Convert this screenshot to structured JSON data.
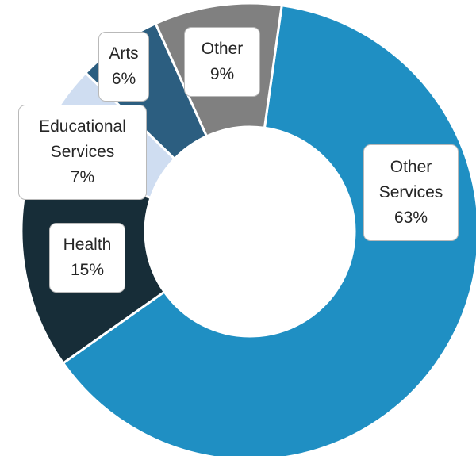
{
  "chart_data": {
    "type": "pie",
    "style": "donut",
    "title": "",
    "start_angle_deg": 0,
    "direction": "clockwise",
    "slices": [
      {
        "label": "Other Services",
        "label_lines": [
          "Other",
          "Services"
        ],
        "value": 63,
        "value_label": "63%",
        "color": "#1f8fc3"
      },
      {
        "label": "Health",
        "label_lines": [
          "Health"
        ],
        "value": 15,
        "value_label": "15%",
        "color": "#172d38"
      },
      {
        "label": "Educational Services",
        "label_lines": [
          "Educational",
          "Services"
        ],
        "value": 7,
        "value_label": "7%",
        "color": "#cfddf1"
      },
      {
        "label": "Arts",
        "label_lines": [
          "Arts"
        ],
        "value": 6,
        "value_label": "6%",
        "color": "#2c5e80"
      },
      {
        "label": "Other",
        "label_lines": [
          "Other"
        ],
        "value": 9,
        "value_label": "9%",
        "color": "#808080"
      }
    ],
    "legend": "none",
    "data_labels": "callouts"
  }
}
